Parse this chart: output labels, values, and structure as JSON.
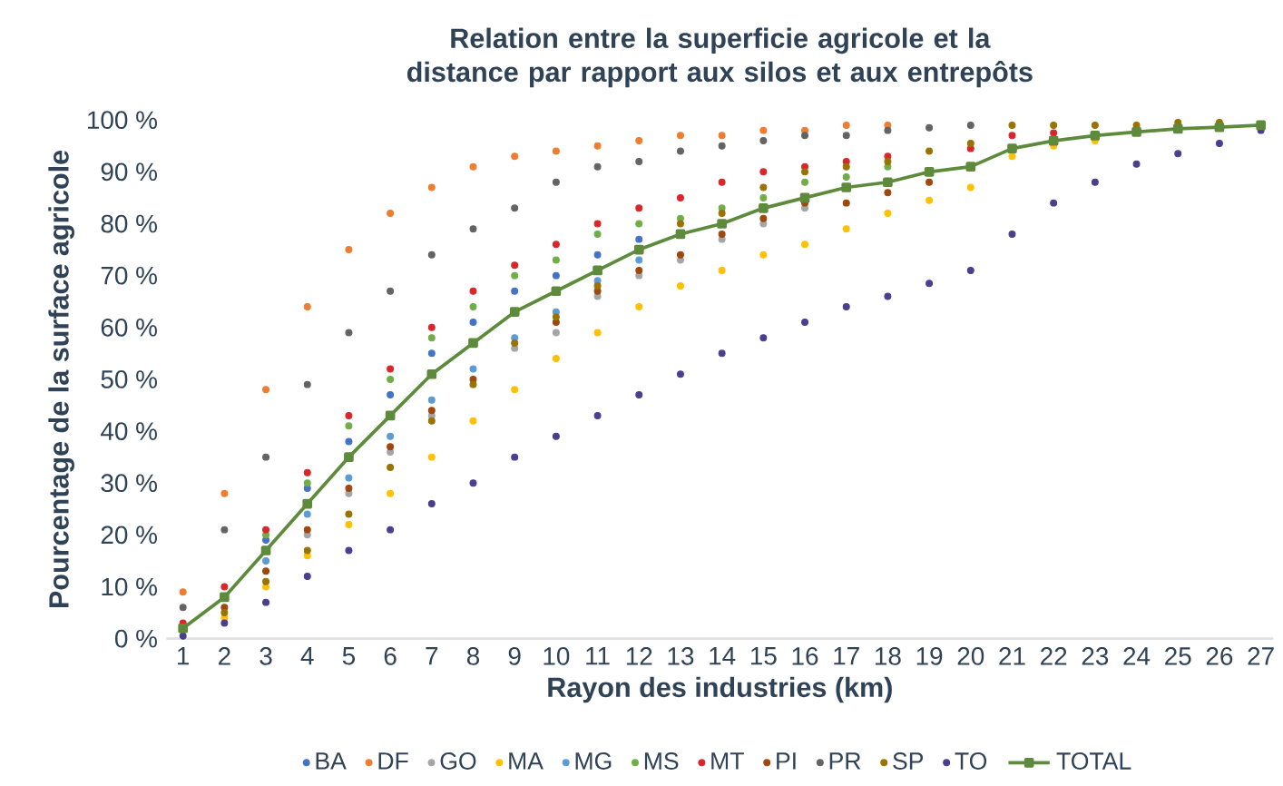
{
  "chart_data": {
    "type": "scatter",
    "title": "Relation entre la superficie agricole et la distance par rapport aux silos et aux entrepôts",
    "xlabel": "Rayon des industries (km)",
    "ylabel": "Pourcentage de la surface agricole",
    "x": [
      1,
      2,
      3,
      4,
      5,
      6,
      7,
      8,
      9,
      10,
      11,
      12,
      13,
      14,
      15,
      16,
      17,
      18,
      19,
      20,
      21,
      22,
      23,
      24,
      25,
      26,
      27
    ],
    "xlim": [
      0.6,
      27.3
    ],
    "xticks": [
      1,
      2,
      3,
      4,
      5,
      6,
      7,
      8,
      9,
      10,
      11,
      12,
      13,
      14,
      15,
      16,
      17,
      18,
      19,
      20,
      21,
      22,
      23,
      24,
      25,
      26,
      27
    ],
    "ylim": [
      0,
      100
    ],
    "yticks": [
      {
        "value": 0,
        "label": "0 %"
      },
      {
        "value": 10,
        "label": "10 %"
      },
      {
        "value": 20,
        "label": "20 %"
      },
      {
        "value": 30,
        "label": "30 %"
      },
      {
        "value": 40,
        "label": "40 %"
      },
      {
        "value": 50,
        "label": "50 %"
      },
      {
        "value": 60,
        "label": "60 %"
      },
      {
        "value": 70,
        "label": "70 %"
      },
      {
        "value": 80,
        "label": "80 %"
      },
      {
        "value": 90,
        "label": "90 %"
      },
      {
        "value": 100,
        "label": "100 %"
      }
    ],
    "grid": false,
    "legend": "bottom",
    "series": [
      {
        "name": "BA",
        "marker": "circle",
        "color": "#4472c4",
        "values": [
          null,
          null,
          19,
          29,
          38,
          47,
          55,
          61,
          67,
          70,
          74,
          77,
          null,
          null,
          null,
          null,
          null,
          null,
          null,
          null,
          null,
          null,
          null,
          null,
          null,
          null,
          null
        ]
      },
      {
        "name": "DF",
        "marker": "circle",
        "color": "#ed7d31",
        "values": [
          9,
          28,
          48,
          64,
          75,
          82,
          87,
          91,
          93,
          94,
          95,
          96,
          97,
          97,
          98,
          98,
          99,
          99,
          null,
          null,
          null,
          null,
          null,
          null,
          null,
          null,
          null
        ]
      },
      {
        "name": "GO",
        "marker": "circle",
        "color": "#a5a5a5",
        "values": [
          null,
          null,
          null,
          20,
          28,
          36,
          43,
          null,
          56,
          59,
          66,
          70,
          73,
          77,
          80,
          83,
          null,
          null,
          null,
          null,
          null,
          null,
          null,
          null,
          null,
          null,
          null
        ]
      },
      {
        "name": "MA",
        "marker": "circle",
        "color": "#ffc000",
        "values": [
          null,
          4,
          10,
          16,
          22,
          28,
          35,
          42,
          48,
          54,
          59,
          64,
          68,
          71,
          74,
          76,
          79,
          82,
          84.5,
          87,
          93,
          95,
          96,
          null,
          null,
          null,
          null
        ]
      },
      {
        "name": "MG",
        "marker": "circle",
        "color": "#5b9bd5",
        "values": [
          null,
          null,
          15,
          24,
          31,
          39,
          46,
          52,
          58,
          63,
          69,
          73,
          null,
          null,
          null,
          null,
          null,
          null,
          null,
          null,
          null,
          null,
          null,
          null,
          null,
          null,
          null
        ]
      },
      {
        "name": "MS",
        "marker": "circle",
        "color": "#70ad47",
        "values": [
          null,
          null,
          20,
          30,
          41,
          50,
          58,
          64,
          70,
          73,
          78,
          80,
          81,
          83,
          85,
          88,
          89,
          91,
          null,
          null,
          null,
          null,
          null,
          null,
          null,
          null,
          null
        ]
      },
      {
        "name": "MT",
        "marker": "circle",
        "color": "#d9262b",
        "values": [
          3,
          10,
          21,
          32,
          43,
          52,
          60,
          67,
          72,
          76,
          80,
          83,
          85,
          88,
          90,
          91,
          92,
          93,
          null,
          94.5,
          97,
          97.5,
          null,
          null,
          null,
          null,
          null
        ]
      },
      {
        "name": "PI",
        "marker": "circle",
        "color": "#9e480e",
        "values": [
          null,
          6,
          13,
          21,
          29,
          37,
          44,
          50,
          null,
          61,
          67,
          71,
          74,
          78,
          81,
          84,
          84,
          86,
          88,
          null,
          null,
          null,
          null,
          null,
          null,
          null,
          null
        ]
      },
      {
        "name": "PR",
        "marker": "circle",
        "color": "#636363",
        "values": [
          6,
          21,
          35,
          49,
          59,
          67,
          74,
          79,
          83,
          88,
          91,
          92,
          94,
          95,
          96,
          97,
          97,
          98,
          98.5,
          99,
          null,
          null,
          null,
          null,
          null,
          null,
          null
        ]
      },
      {
        "name": "SP",
        "marker": "circle",
        "color": "#997300",
        "values": [
          null,
          5,
          11,
          17,
          24,
          33,
          42,
          49,
          57,
          62,
          68,
          null,
          80,
          82,
          87,
          90,
          91,
          92,
          94,
          95.5,
          99,
          99,
          99,
          99,
          99.5,
          99.5,
          null
        ]
      },
      {
        "name": "TO",
        "marker": "circle",
        "color": "#4b3d8f",
        "values": [
          0.5,
          3,
          7,
          12,
          17,
          21,
          26,
          30,
          35,
          39,
          43,
          47,
          51,
          55,
          58,
          61,
          64,
          66,
          68.5,
          71,
          78,
          84,
          88,
          91.5,
          93.5,
          95.5,
          98
        ]
      },
      {
        "name": "TOTAL",
        "type": "line",
        "marker": "square",
        "color": "#5e8a3c",
        "values": [
          2,
          8,
          17,
          26,
          35,
          43,
          51,
          57,
          63,
          67,
          71,
          75,
          78,
          80,
          83,
          85,
          87,
          88,
          90,
          91,
          94.5,
          96,
          97,
          97.7,
          98.3,
          98.6,
          99
        ]
      }
    ]
  }
}
